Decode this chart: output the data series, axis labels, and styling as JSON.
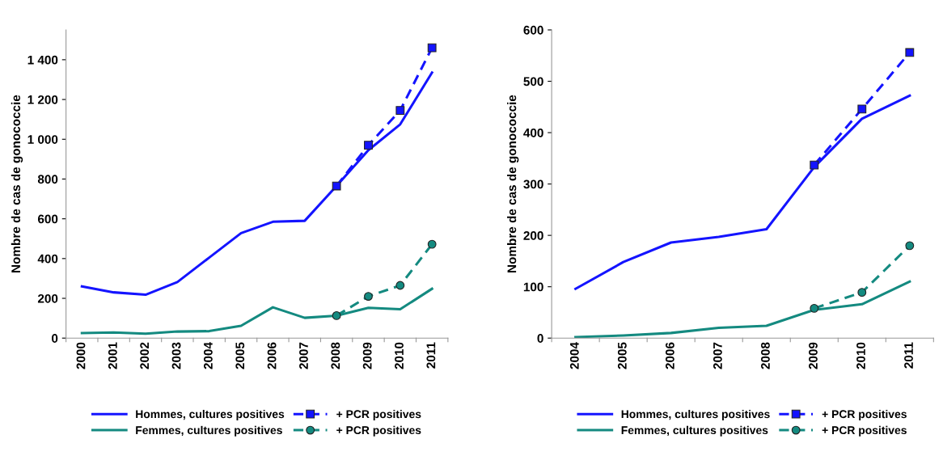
{
  "chart_data": [
    {
      "type": "line",
      "ylabel": "Nombre de cas de gonococcie",
      "categories": [
        "2000",
        "2001",
        "2002",
        "2003",
        "2004",
        "2005",
        "2006",
        "2007",
        "2008",
        "2009",
        "2010",
        "2011"
      ],
      "ylim": [
        0,
        1550
      ],
      "yticks": [
        0,
        200,
        400,
        600,
        800,
        {
          "value": 1000,
          "label": "1 000"
        },
        {
          "value": 1200,
          "label": "1 200"
        },
        {
          "value": 1400,
          "label": "1 400"
        }
      ],
      "grid": false,
      "legend": "bottom",
      "series": [
        {
          "name": "Hommes, cultures positives",
          "color": "#1414ff",
          "line_style": "solid",
          "marker": "none",
          "values": [
            260,
            230,
            218,
            282,
            405,
            528,
            585,
            590,
            765,
            945,
            1075,
            1335
          ]
        },
        {
          "name": "Femmes, cultures positives",
          "color": "#148a80",
          "line_style": "solid",
          "marker": "none",
          "values": [
            25,
            28,
            22,
            33,
            35,
            62,
            155,
            102,
            113,
            152,
            145,
            248
          ]
        },
        {
          "name": "+ PCR positives",
          "color": "#1414ff",
          "line_style": "dashed",
          "marker": "square",
          "values": [
            null,
            null,
            null,
            null,
            null,
            null,
            null,
            null,
            765,
            970,
            1145,
            1460
          ]
        },
        {
          "name": "+ PCR positives",
          "color": "#148a80",
          "line_style": "dashed",
          "marker": "circle",
          "values": [
            null,
            null,
            null,
            null,
            null,
            null,
            null,
            null,
            113,
            210,
            265,
            472
          ]
        }
      ]
    },
    {
      "type": "line",
      "ylabel": "Nombre de cas de gonococcie",
      "categories": [
        "2004",
        "2005",
        "2006",
        "2007",
        "2008",
        "2009",
        "2010",
        "2011"
      ],
      "ylim": [
        0,
        600
      ],
      "yticks": [
        0,
        100,
        200,
        300,
        400,
        500,
        600
      ],
      "grid": false,
      "legend": "bottom",
      "series": [
        {
          "name": "Hommes, cultures positives",
          "color": "#1414ff",
          "line_style": "solid",
          "marker": "none",
          "values": [
            96,
            148,
            186,
            197,
            212,
            333,
            427,
            472
          ]
        },
        {
          "name": "Femmes, cultures positives",
          "color": "#148a80",
          "line_style": "solid",
          "marker": "none",
          "values": [
            2,
            5,
            10,
            20,
            24,
            55,
            66,
            110
          ]
        },
        {
          "name": "+ PCR positives",
          "color": "#1414ff",
          "line_style": "dashed",
          "marker": "square",
          "values": [
            null,
            null,
            null,
            null,
            null,
            337,
            446,
            556
          ]
        },
        {
          "name": "+ PCR positives",
          "color": "#148a80",
          "line_style": "dashed",
          "marker": "circle",
          "values": [
            null,
            null,
            null,
            null,
            null,
            58,
            89,
            180
          ]
        }
      ]
    }
  ]
}
